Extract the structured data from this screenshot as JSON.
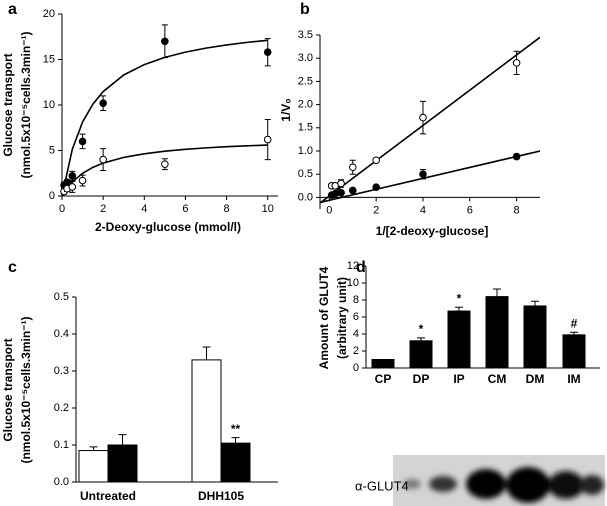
{
  "chart_data": [
    {
      "type": "scatter",
      "panel": "a",
      "xlabel": "2-Deoxy-glucose (mmol/l)",
      "ylabel": [
        "Glucose transport",
        "(nmol.5x10⁻⁵cells.3min⁻¹)"
      ],
      "xlim": [
        0,
        10.5
      ],
      "ylim": [
        0,
        20
      ],
      "xticks": [
        0,
        2,
        4,
        6,
        8,
        10
      ],
      "yticks": [
        0,
        5,
        10,
        15,
        20
      ],
      "series": [
        {
          "marker": "filled",
          "color": "#000000",
          "x": [
            0.1,
            0.25,
            0.5,
            1,
            2,
            5,
            10
          ],
          "values": [
            1.2,
            1.5,
            2.2,
            6,
            10.2,
            17,
            15.8
          ],
          "errors": [
            0.3,
            0.3,
            0.5,
            0.8,
            0.8,
            1.8,
            1.5
          ],
          "fit_x": [
            0,
            0.5,
            1,
            1.5,
            2,
            3,
            4,
            5,
            6,
            7,
            8,
            9,
            10
          ],
          "fit_values": [
            0,
            5.13,
            8.13,
            10.09,
            11.47,
            13.3,
            14.44,
            15.23,
            15.81,
            16.25,
            16.6,
            16.88,
            17.11
          ]
        },
        {
          "marker": "open",
          "color": "#000000",
          "x": [
            0.1,
            0.25,
            0.5,
            1,
            2,
            5,
            10
          ],
          "values": [
            0.5,
            0.8,
            1.0,
            1.7,
            4.0,
            3.5,
            6.2
          ],
          "errors": [
            0.3,
            0.3,
            0.6,
            0.6,
            1.2,
            0.6,
            2.2
          ],
          "fit_x": [
            0,
            0.5,
            1,
            1.5,
            2,
            3,
            4,
            5,
            6,
            7,
            8,
            9,
            10
          ],
          "fit_values": [
            0,
            1.55,
            2.5,
            3.15,
            3.61,
            4.24,
            4.64,
            4.92,
            5.13,
            5.29,
            5.42,
            5.52,
            5.6
          ]
        }
      ]
    },
    {
      "type": "scatter",
      "panel": "b",
      "xlabel": "1/[2-deoxy-glucose]",
      "ylabel": [
        "1/V₀"
      ],
      "xlim": [
        -0.4,
        9
      ],
      "ylim": [
        -0.25,
        3.5
      ],
      "xticks": [
        0,
        2,
        4,
        6,
        8
      ],
      "yticks": [
        {
          "value": 0,
          "label": "0.0"
        },
        0.5,
        {
          "value": 1,
          "label": "1.0"
        },
        1.5,
        {
          "value": 2,
          "label": "2.0"
        },
        2.5,
        {
          "value": 3,
          "label": "3.0"
        },
        3.5
      ],
      "series": [
        {
          "marker": "open",
          "color": "#000000",
          "x": [
            0.1,
            0.25,
            0.5,
            1,
            2,
            4,
            8
          ],
          "values": [
            0.25,
            0.25,
            0.3,
            0.65,
            0.8,
            1.72,
            2.9
          ],
          "errors": [
            0.05,
            0.05,
            0.08,
            0.15,
            0.05,
            0.35,
            0.25
          ],
          "fit_x": [
            -0.4,
            9
          ],
          "fit_values": [
            -0.12,
            3.45
          ]
        },
        {
          "marker": "filled",
          "color": "#000000",
          "x": [
            0.1,
            0.25,
            0.5,
            1,
            2,
            4,
            8
          ],
          "values": [
            0.05,
            0.08,
            0.1,
            0.15,
            0.22,
            0.5,
            0.88
          ],
          "errors": [
            0.02,
            0.02,
            0.02,
            0.03,
            0.03,
            0.1,
            0.05
          ],
          "fit_x": [
            -0.4,
            9
          ],
          "fit_values": [
            -0.11,
            1.0
          ]
        }
      ]
    },
    {
      "type": "bar",
      "panel": "c",
      "ylabel": [
        "Glucose transport",
        "(nmol.5x10⁻⁵cells.3min⁻¹)"
      ],
      "categories": [
        "Untreated",
        "DHH105"
      ],
      "ylim": [
        0,
        0.5
      ],
      "yticks": [
        {
          "value": 0,
          "label": "0.0"
        },
        0.1,
        0.2,
        0.3,
        0.4,
        0.5
      ],
      "series": [
        {
          "color": "#ffffff",
          "values": [
            0.085,
            0.33
          ],
          "errors": [
            0.01,
            0.035
          ],
          "annotations": [
            null,
            null
          ]
        },
        {
          "color": "#000000",
          "values": [
            0.1,
            0.105
          ],
          "errors": [
            0.028,
            0.015
          ],
          "annotations": [
            null,
            "**"
          ]
        }
      ]
    },
    {
      "type": "bar",
      "panel": "d",
      "ylabel": [
        "Amount of GLUT4",
        "(arbitrary unit)"
      ],
      "categories": [
        "CP",
        "DP",
        "IP",
        "CM",
        "DM",
        "IM"
      ],
      "ylim": [
        0,
        12
      ],
      "yticks": [
        0,
        2,
        4,
        6,
        8,
        10,
        12
      ],
      "blot_label": "α-GLUT4",
      "series": [
        {
          "color": "#000000",
          "values": [
            1,
            3.2,
            6.7,
            8.4,
            7.3,
            3.9
          ],
          "errors": [
            null,
            0.35,
            0.45,
            0.9,
            0.55,
            0.3
          ],
          "annotations": [
            null,
            "*",
            "*",
            null,
            null,
            "#"
          ]
        }
      ]
    }
  ]
}
